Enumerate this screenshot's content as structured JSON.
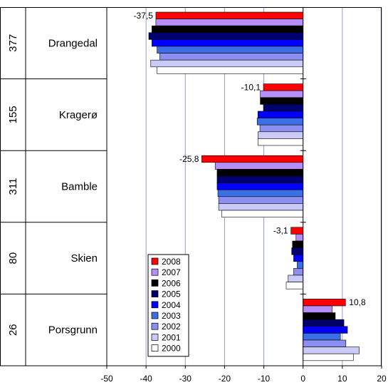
{
  "chart_data": {
    "type": "bar",
    "orientation": "horizontal",
    "xlim": [
      -50,
      20
    ],
    "x_ticks": [
      "-50",
      "-40",
      "-30",
      "-20",
      "-10",
      "0",
      "10",
      "20"
    ],
    "grid": "vertical",
    "legend_position": "bottom-left",
    "groups": [
      {
        "name": "Drangedal",
        "code": "377",
        "label": "-37,5",
        "values": [
          -37.5,
          -37.5,
          -38.5,
          -39.3,
          -38.5,
          -37.2,
          -36.5,
          -38.8,
          -37.2
        ]
      },
      {
        "name": "Kragerø",
        "code": "155",
        "label": "-10,1",
        "values": [
          -10.1,
          -10.9,
          -10.9,
          -10.1,
          -11.5,
          -11.7,
          -11.0,
          -11.5,
          -11.5
        ]
      },
      {
        "name": "Bamble",
        "code": "311",
        "label": "-25,8",
        "values": [
          -25.8,
          -22.4,
          -21.9,
          -21.9,
          -21.9,
          -21.7,
          -21.5,
          -21.5,
          -20.7
        ]
      },
      {
        "name": "Skien",
        "code": "80",
        "label": "-3,1",
        "values": [
          -3.1,
          -1.8,
          -2.7,
          -2.9,
          -2.4,
          -1.5,
          -2.4,
          -3.8,
          -4.3
        ]
      },
      {
        "name": "Porsgrunn",
        "code": "26",
        "label": "10,8",
        "values": [
          10.8,
          7.4,
          8.2,
          10.4,
          11.3,
          9.5,
          10.9,
          14.3,
          12.8
        ]
      }
    ],
    "series": [
      {
        "name": "2008",
        "color": "#ff0000"
      },
      {
        "name": "2007",
        "color": "#b68ef7"
      },
      {
        "name": "2006",
        "color": "#000000"
      },
      {
        "name": "2005",
        "color": "#00006e"
      },
      {
        "name": "2004",
        "color": "#0000ff"
      },
      {
        "name": "2003",
        "color": "#3c6fe6"
      },
      {
        "name": "2002",
        "color": "#8c8ef0"
      },
      {
        "name": "2001",
        "color": "#cacaf8"
      },
      {
        "name": "2000",
        "color": "#ffffff"
      }
    ]
  }
}
